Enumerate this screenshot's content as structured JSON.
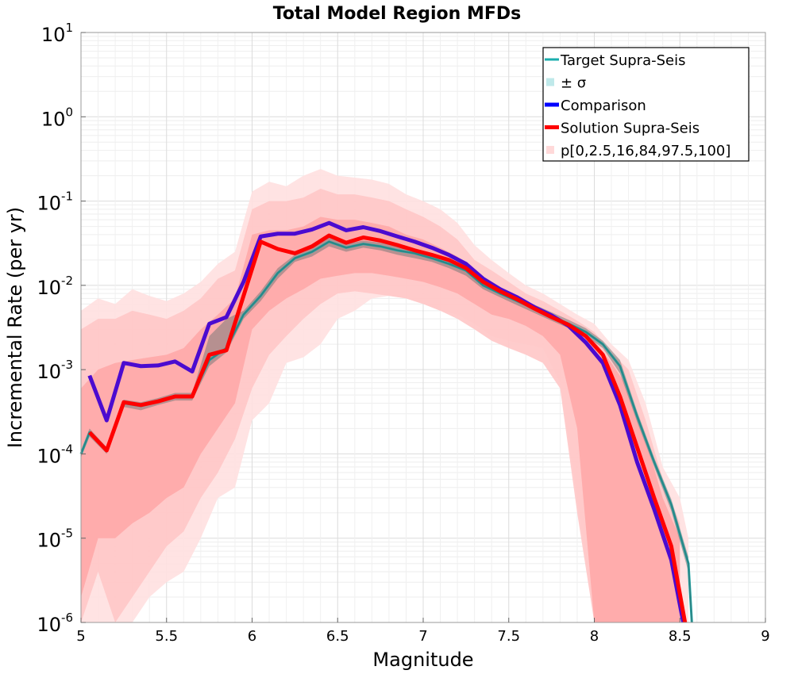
{
  "chart_data": {
    "type": "line",
    "title": "Total Model Region MFDs",
    "xlabel": "Magnitude",
    "ylabel": "Incremental Rate (per yr)",
    "xlim": [
      5,
      9
    ],
    "ylim": [
      1e-06,
      10
    ],
    "y_scale": "log",
    "grid": true,
    "legend_position": "top-right",
    "x_ticks": [
      "5",
      "5.5",
      "6",
      "6.5",
      "7",
      "7.5",
      "8",
      "8.5",
      "9"
    ],
    "y_ticks": [
      {
        "base": "10",
        "exp": "1"
      },
      {
        "base": "10",
        "exp": "0"
      },
      {
        "base": "10",
        "exp": "-1"
      },
      {
        "base": "10",
        "exp": "-2"
      },
      {
        "base": "10",
        "exp": "-3"
      },
      {
        "base": "10",
        "exp": "-4"
      },
      {
        "base": "10",
        "exp": "-5"
      },
      {
        "base": "10",
        "exp": "-6"
      }
    ],
    "legend": [
      {
        "label": "Target Supra-Seis",
        "color": "#1aadad",
        "kind": "line"
      },
      {
        "label": "± σ",
        "color": "#bfe9ea",
        "kind": "box"
      },
      {
        "label": "Comparison",
        "color": "#0000ff",
        "kind": "line"
      },
      {
        "label": "Solution Supra-Seis",
        "color": "#ff0000",
        "kind": "line"
      },
      {
        "label": "p[0,2.5,16,84,97.5,100]",
        "color": "#ffd9d9",
        "kind": "box"
      }
    ],
    "series": [
      {
        "name": "Target Supra-Seis",
        "color": "#1aadad",
        "x": [
          5.0,
          5.05,
          5.15,
          5.25,
          5.35,
          5.45,
          5.55,
          5.65,
          5.75,
          5.85,
          5.95,
          6.05,
          6.15,
          6.25,
          6.35,
          6.45,
          6.55,
          6.65,
          6.75,
          6.85,
          6.95,
          7.05,
          7.15,
          7.25,
          7.35,
          7.45,
          7.55,
          7.65,
          7.75,
          7.85,
          7.95,
          8.05,
          8.15,
          8.25,
          8.35,
          8.45,
          8.55,
          8.57
        ],
        "values": [
          0.0001,
          0.00018,
          0.00011,
          0.0004,
          0.00037,
          0.00042,
          0.00048,
          0.00048,
          0.0013,
          0.0018,
          0.0045,
          0.0075,
          0.014,
          0.021,
          0.025,
          0.033,
          0.028,
          0.031,
          0.029,
          0.026,
          0.024,
          0.021,
          0.018,
          0.015,
          0.01,
          0.008,
          0.0065,
          0.0053,
          0.0043,
          0.0035,
          0.0028,
          0.002,
          0.0011,
          0.00028,
          8e-05,
          2.5e-05,
          5e-06,
          9e-07
        ]
      },
      {
        "name": "Comparison",
        "color": "#4b0bd0",
        "x": [
          5.05,
          5.15,
          5.25,
          5.35,
          5.45,
          5.55,
          5.65,
          5.75,
          5.85,
          5.95,
          6.05,
          6.15,
          6.25,
          6.35,
          6.45,
          6.55,
          6.65,
          6.75,
          6.85,
          6.95,
          7.05,
          7.15,
          7.25,
          7.35,
          7.45,
          7.55,
          7.65,
          7.75,
          7.85,
          7.95,
          8.05,
          8.15,
          8.25,
          8.35,
          8.45,
          8.52
        ],
        "values": [
          0.00085,
          0.00025,
          0.0012,
          0.0011,
          0.00112,
          0.00125,
          0.00095,
          0.0035,
          0.0042,
          0.011,
          0.038,
          0.041,
          0.041,
          0.046,
          0.055,
          0.045,
          0.049,
          0.044,
          0.038,
          0.033,
          0.028,
          0.023,
          0.018,
          0.012,
          0.009,
          0.0072,
          0.0055,
          0.0044,
          0.0033,
          0.0021,
          0.0012,
          0.00038,
          8e-05,
          2.2e-05,
          5.5e-06,
          9e-07
        ]
      },
      {
        "name": "Solution Supra-Seis",
        "color": "#ff0000",
        "x": [
          5.05,
          5.15,
          5.25,
          5.35,
          5.45,
          5.55,
          5.65,
          5.75,
          5.85,
          5.95,
          6.05,
          6.15,
          6.25,
          6.35,
          6.45,
          6.55,
          6.65,
          6.75,
          6.85,
          6.95,
          7.05,
          7.15,
          7.25,
          7.35,
          7.45,
          7.55,
          7.65,
          7.75,
          7.85,
          7.95,
          8.05,
          8.15,
          8.25,
          8.35,
          8.45,
          8.53
        ],
        "values": [
          0.00018,
          0.00011,
          0.00041,
          0.00038,
          0.00042,
          0.00048,
          0.00048,
          0.0015,
          0.0017,
          0.0075,
          0.033,
          0.027,
          0.024,
          0.029,
          0.039,
          0.032,
          0.037,
          0.034,
          0.03,
          0.026,
          0.023,
          0.02,
          0.016,
          0.011,
          0.0085,
          0.0068,
          0.0053,
          0.0042,
          0.0034,
          0.0025,
          0.0015,
          0.00048,
          0.00012,
          3e-05,
          8e-06,
          9e-07
        ]
      }
    ],
    "percentile_bands": [
      {
        "name": "p0-p100",
        "x": [
          5.0,
          5.1,
          5.2,
          5.3,
          5.4,
          5.5,
          5.6,
          5.7,
          5.8,
          5.9,
          6.0,
          6.1,
          6.2,
          6.3,
          6.4,
          6.5,
          6.6,
          6.7,
          6.8,
          6.9,
          7.0,
          7.1,
          7.2,
          7.3,
          7.4,
          7.5,
          7.6,
          7.7,
          7.8,
          7.9,
          8.0,
          8.1,
          8.2,
          8.3,
          8.4,
          8.5,
          8.55
        ],
        "low": [
          1e-06,
          1e-06,
          1e-06,
          1e-06,
          2e-06,
          3e-06,
          4e-06,
          1e-05,
          3e-05,
          4e-05,
          0.00025,
          0.0004,
          0.0012,
          0.0014,
          0.002,
          0.004,
          0.005,
          0.007,
          0.0075,
          0.007,
          0.006,
          0.005,
          0.0045,
          0.0035,
          0.0025,
          0.0022,
          0.002,
          0.0018,
          0.0007,
          3e-05,
          1e-06,
          1e-06,
          1e-06,
          1e-06,
          1e-06,
          1e-06,
          1e-06
        ],
        "high": [
          0.005,
          0.007,
          0.006,
          0.009,
          0.0075,
          0.0065,
          0.008,
          0.011,
          0.018,
          0.025,
          0.13,
          0.17,
          0.15,
          0.2,
          0.24,
          0.2,
          0.19,
          0.18,
          0.16,
          0.12,
          0.1,
          0.08,
          0.055,
          0.03,
          0.02,
          0.014,
          0.01,
          0.008,
          0.006,
          0.0045,
          0.0035,
          0.002,
          0.0013,
          0.0004,
          7e-05,
          3e-05,
          1e-05
        ]
      },
      {
        "name": "p2.5-p97.5",
        "x": [
          5.0,
          5.1,
          5.2,
          5.3,
          5.4,
          5.5,
          5.6,
          5.7,
          5.8,
          5.9,
          6.0,
          6.1,
          6.2,
          6.3,
          6.4,
          6.5,
          6.6,
          6.7,
          6.8,
          6.9,
          7.0,
          7.1,
          7.2,
          7.3,
          7.4,
          7.5,
          7.6,
          7.7,
          7.8,
          7.9,
          8.0,
          8.1,
          8.2,
          8.3,
          8.4,
          8.5
        ],
        "low": [
          1e-06,
          4e-06,
          1e-06,
          2e-06,
          4e-06,
          8e-06,
          1.2e-05,
          3e-05,
          6e-05,
          0.00015,
          0.0006,
          0.0015,
          0.0025,
          0.004,
          0.006,
          0.008,
          0.0085,
          0.008,
          0.0075,
          0.007,
          0.006,
          0.005,
          0.004,
          0.003,
          0.0022,
          0.0018,
          0.0015,
          0.0012,
          0.0006,
          2e-05,
          1e-06,
          1e-06,
          1e-06,
          1e-06,
          1e-06,
          1e-06
        ],
        "high": [
          0.003,
          0.004,
          0.004,
          0.005,
          0.0045,
          0.004,
          0.005,
          0.007,
          0.012,
          0.015,
          0.08,
          0.1,
          0.1,
          0.11,
          0.14,
          0.12,
          0.12,
          0.11,
          0.1,
          0.08,
          0.065,
          0.05,
          0.035,
          0.02,
          0.015,
          0.011,
          0.008,
          0.0065,
          0.005,
          0.0038,
          0.0028,
          0.0016,
          0.001,
          0.00025,
          5e-05,
          1.5e-05
        ]
      },
      {
        "name": "p16-p84",
        "x": [
          5.0,
          5.1,
          5.2,
          5.3,
          5.4,
          5.5,
          5.6,
          5.7,
          5.8,
          5.9,
          6.0,
          6.1,
          6.2,
          6.3,
          6.4,
          6.5,
          6.6,
          6.7,
          6.8,
          6.9,
          7.0,
          7.1,
          7.2,
          7.3,
          7.4,
          7.5,
          7.6,
          7.7,
          7.8,
          7.9,
          8.0,
          8.1,
          8.2,
          8.3,
          8.4,
          8.5
        ],
        "low": [
          2e-06,
          1e-05,
          1e-05,
          1.5e-05,
          2e-05,
          3e-05,
          4e-05,
          0.0001,
          0.0002,
          0.0004,
          0.003,
          0.005,
          0.007,
          0.009,
          0.012,
          0.013,
          0.014,
          0.014,
          0.013,
          0.012,
          0.011,
          0.0095,
          0.008,
          0.006,
          0.0045,
          0.004,
          0.0033,
          0.0025,
          0.0015,
          0.0002,
          1e-06,
          1e-06,
          1e-06,
          1e-06,
          1e-06,
          1e-06
        ],
        "high": [
          0.0006,
          0.001,
          0.0012,
          0.0013,
          0.0014,
          0.0015,
          0.0018,
          0.003,
          0.0045,
          0.007,
          0.04,
          0.045,
          0.045,
          0.05,
          0.065,
          0.06,
          0.06,
          0.055,
          0.05,
          0.04,
          0.035,
          0.028,
          0.022,
          0.014,
          0.01,
          0.008,
          0.0062,
          0.005,
          0.004,
          0.003,
          0.0022,
          0.0012,
          0.0006,
          0.00015,
          3e-05,
          1e-05
        ]
      }
    ],
    "sigma_band": {
      "x": [
        5.0,
        5.05,
        5.15,
        5.25,
        5.35,
        5.45,
        5.55,
        5.65,
        5.75,
        5.85,
        5.95,
        6.05,
        6.15,
        6.25,
        6.35,
        6.45,
        6.55,
        6.65,
        6.75,
        6.85,
        6.95,
        7.05,
        7.15,
        7.25,
        7.35,
        7.45,
        7.55,
        7.65,
        7.75,
        7.85,
        7.95,
        8.05,
        8.15,
        8.25,
        8.35,
        8.45,
        8.55
      ],
      "low": [
        9e-05,
        0.00016,
        0.0001,
        0.00036,
        0.00033,
        0.00038,
        0.00043,
        0.00043,
        0.0011,
        0.0016,
        0.004,
        0.0065,
        0.012,
        0.019,
        0.022,
        0.029,
        0.025,
        0.028,
        0.026,
        0.023,
        0.021,
        0.019,
        0.016,
        0.013,
        0.009,
        0.0072,
        0.0058,
        0.0047,
        0.0038,
        0.0031,
        0.0025,
        0.0018,
        0.0009,
        0.00024,
        7e-05,
        2.1e-05,
        4e-06
      ],
      "high": [
        0.00011,
        0.0002,
        0.00012,
        0.00044,
        0.00041,
        0.00046,
        0.00053,
        0.00053,
        0.0025,
        0.004,
        0.005,
        0.0085,
        0.016,
        0.023,
        0.028,
        0.037,
        0.031,
        0.034,
        0.032,
        0.029,
        0.027,
        0.024,
        0.02,
        0.017,
        0.011,
        0.0088,
        0.0072,
        0.0059,
        0.0048,
        0.0039,
        0.0031,
        0.0022,
        0.0013,
        0.00032,
        9e-05,
        2.9e-05,
        6e-06
      ]
    }
  }
}
